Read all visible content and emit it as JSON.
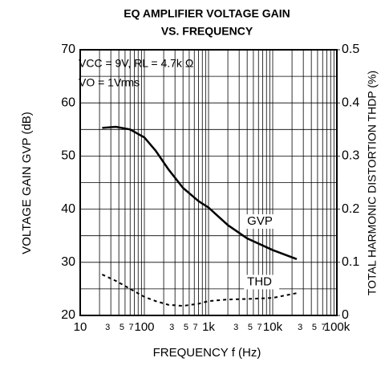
{
  "chart_data": {
    "type": "line",
    "title": [
      "EQ AMPLIFIER VOLTAGE GAIN",
      "VS. FREQUENCY"
    ],
    "x_label": "FREQUENCY  f  (Hz)",
    "y_label": "VOLTAGE  GAIN  GVP  (dB)",
    "y2_label": "TOTAL  HARMONIC  DISTORTION  THDP  (%)",
    "annotations": [
      "VCC = 9V,  RL = 4.7k Ω",
      "VO = 1Vrms"
    ],
    "x": [
      22,
      36,
      60,
      100,
      150,
      237,
      400,
      700,
      1000,
      2000,
      4000,
      10000,
      23700
    ],
    "series": [
      {
        "name": "GVP",
        "color": "#000000",
        "values": [
          55.3,
          55.5,
          55,
          53.5,
          51,
          47.5,
          44,
          41.5,
          40.3,
          37,
          34.5,
          32.3,
          30.6
        ]
      },
      {
        "name": "THD",
        "color": "#000000",
        "axis": "y2",
        "dashed": true,
        "values": [
          0.077,
          0.065,
          0.05,
          0.035,
          0.027,
          0.02,
          0.018,
          0.022,
          0.027,
          0.03,
          0.031,
          0.033,
          0.042
        ]
      }
    ],
    "xlog": true,
    "xlim": [
      10,
      100000
    ],
    "xticks": [
      10,
      {
        "value": 30,
        "label": "3"
      },
      {
        "value": 50,
        "label": "5"
      },
      {
        "value": 70,
        "label": "7"
      },
      100,
      {
        "value": 300,
        "label": "3"
      },
      {
        "value": 500,
        "label": "5"
      },
      {
        "value": 700,
        "label": "7"
      },
      {
        "value": 1000,
        "label": "1k"
      },
      {
        "value": 3000,
        "label": "3"
      },
      {
        "value": 5000,
        "label": "5"
      },
      {
        "value": 7000,
        "label": "7"
      },
      {
        "value": 10000,
        "label": "10k"
      },
      {
        "value": 30000,
        "label": "3"
      },
      {
        "value": 50000,
        "label": "5"
      },
      {
        "value": 70000,
        "label": "7"
      },
      {
        "value": 100000,
        "label": "100k"
      }
    ],
    "ylim": [
      20,
      70
    ],
    "yticks": [
      20,
      30,
      40,
      50,
      60,
      70
    ],
    "y2lim": [
      0,
      0.5
    ],
    "y2ticks": [
      0,
      0.1,
      0.2,
      0.3,
      0.4,
      0.5
    ],
    "grid": true
  }
}
